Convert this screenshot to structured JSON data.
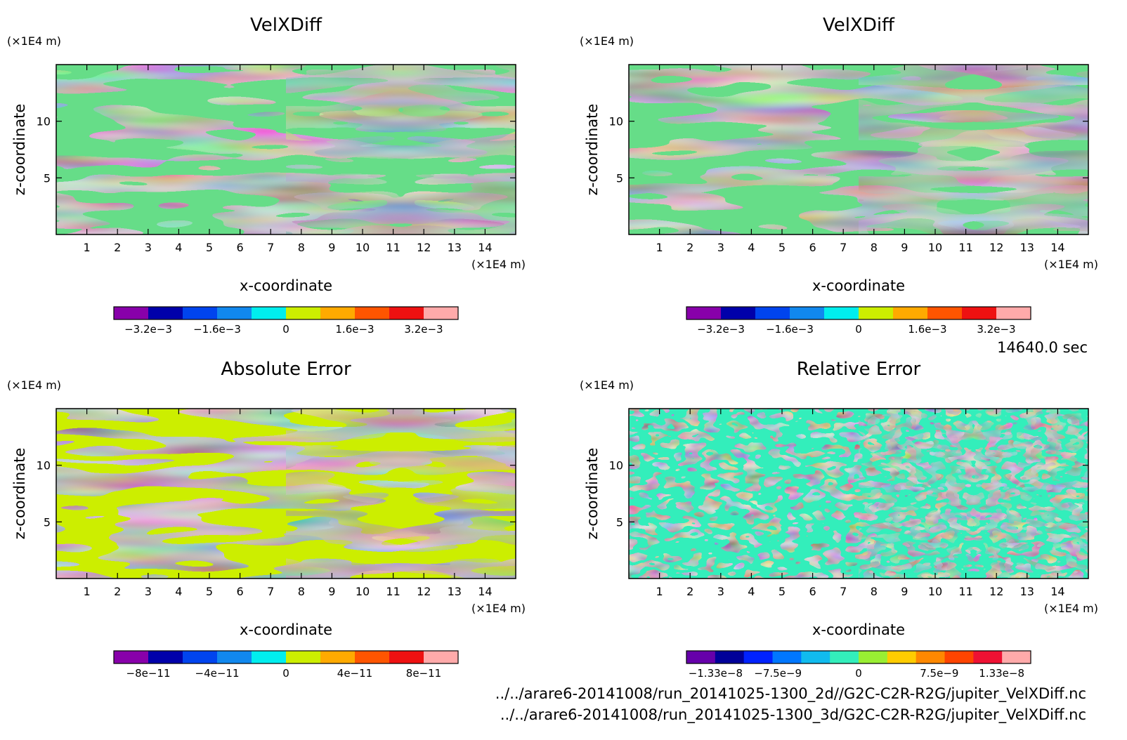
{
  "time_label": "14640.0 sec",
  "file_paths": [
    "../../arare6-20141008/run_20141025-1300_2d//G2C-C2R-R2G/jupiter_VelXDiff.nc",
    "../../arare6-20141008/run_20141025-1300_3d/G2C-C2R-R2G/jupiter_VelXDiff.nc"
  ],
  "chart_data": [
    {
      "type": "heatmap",
      "title": "VelXDiff",
      "xlabel": "x-coordinate",
      "ylabel": "z-coordinate",
      "x_unit": "(×1E4 m)",
      "y_unit": "(×1E4 m)",
      "xlim": [
        0,
        15
      ],
      "ylim": [
        0,
        15
      ],
      "x_ticks": [
        1,
        2,
        3,
        4,
        5,
        6,
        7,
        8,
        9,
        10,
        11,
        12,
        13,
        14
      ],
      "y_ticks": [
        5,
        10
      ],
      "pattern": "banded",
      "palette": [
        "#66dd88",
        "#ccee00",
        "#00eeee",
        "#00eeee"
      ],
      "colorbar": {
        "colors": [
          "#8800aa",
          "#0000aa",
          "#0044ee",
          "#1188ee",
          "#00eeee",
          "#ccee00",
          "#ffaa00",
          "#ff5500",
          "#ee1111",
          "#ffaaaa"
        ],
        "tick_labels": [
          "−3.2e−3",
          "−1.6e−3",
          "0",
          "1.6e−3",
          "3.2e−3"
        ],
        "tick_values": [
          -0.0032,
          -0.0016,
          0,
          0.0016,
          0.0032
        ],
        "range": [
          -0.004,
          0.004
        ]
      }
    },
    {
      "type": "heatmap",
      "title": "VelXDiff",
      "xlabel": "x-coordinate",
      "ylabel": "z-coordinate",
      "x_unit": "(×1E4 m)",
      "y_unit": "(×1E4 m)",
      "xlim": [
        0,
        15
      ],
      "ylim": [
        0,
        15
      ],
      "x_ticks": [
        1,
        2,
        3,
        4,
        5,
        6,
        7,
        8,
        9,
        10,
        11,
        12,
        13,
        14
      ],
      "y_ticks": [
        5,
        10
      ],
      "pattern": "banded",
      "palette": [
        "#66dd88",
        "#ccee00",
        "#00eeee",
        "#00eeee"
      ],
      "colorbar": {
        "colors": [
          "#8800aa",
          "#0000aa",
          "#0044ee",
          "#1188ee",
          "#00eeee",
          "#ccee00",
          "#ffaa00",
          "#ff5500",
          "#ee1111",
          "#ffaaaa"
        ],
        "tick_labels": [
          "−3.2e−3",
          "−1.6e−3",
          "0",
          "1.6e−3",
          "3.2e−3"
        ],
        "tick_values": [
          -0.0032,
          -0.0016,
          0,
          0.0016,
          0.0032
        ],
        "range": [
          -0.004,
          0.004
        ]
      }
    },
    {
      "type": "heatmap",
      "title": "Absolute Error",
      "xlabel": "x-coordinate",
      "ylabel": "z-coordinate",
      "x_unit": "(×1E4 m)",
      "y_unit": "(×1E4 m)",
      "xlim": [
        0,
        15
      ],
      "ylim": [
        0,
        15
      ],
      "x_ticks": [
        1,
        2,
        3,
        4,
        5,
        6,
        7,
        8,
        9,
        10,
        11,
        12,
        13,
        14
      ],
      "y_ticks": [
        5,
        10
      ],
      "pattern": "banded",
      "palette": [
        "#ccee00",
        "#00eeee",
        "#00eeee",
        "#ccee00"
      ],
      "colorbar": {
        "colors": [
          "#8800aa",
          "#0000aa",
          "#0044ee",
          "#1188ee",
          "#00eeee",
          "#ccee00",
          "#ffaa00",
          "#ff5500",
          "#ee1111",
          "#ffaaaa"
        ],
        "tick_labels": [
          "−8e−11",
          "−4e−11",
          "0",
          "4e−11",
          "8e−11"
        ],
        "tick_values": [
          -8e-11,
          -4e-11,
          0,
          4e-11,
          8e-11
        ],
        "range": [
          -1e-10,
          1e-10
        ]
      }
    },
    {
      "type": "heatmap",
      "title": "Relative Error",
      "xlabel": "x-coordinate",
      "ylabel": "z-coordinate",
      "x_unit": "(×1E4 m)",
      "y_unit": "(×1E4 m)",
      "xlim": [
        0,
        15
      ],
      "ylim": [
        0,
        15
      ],
      "x_ticks": [
        1,
        2,
        3,
        4,
        5,
        6,
        7,
        8,
        9,
        10,
        11,
        12,
        13,
        14
      ],
      "y_ticks": [
        5,
        10
      ],
      "pattern": "speckled",
      "palette": [
        "#33eebb",
        "#99ee33",
        "#66e988",
        "#33eebb"
      ],
      "colorbar": {
        "colors": [
          "#6600aa",
          "#000099",
          "#0022ff",
          "#0077ff",
          "#11bbee",
          "#33eebb",
          "#99ee33",
          "#ffcc00",
          "#ff8800",
          "#ff4400",
          "#ee1133",
          "#ffaaaa"
        ],
        "tick_labels": [
          "−1.33e−8",
          "−7.5e−9",
          "0",
          "7.5e−9",
          "1.33e−8"
        ],
        "tick_values": [
          -1.33e-08,
          -7.5e-09,
          0,
          7.5e-09,
          1.33e-08
        ],
        "range": [
          -1.6e-08,
          1.6e-08
        ]
      }
    }
  ]
}
